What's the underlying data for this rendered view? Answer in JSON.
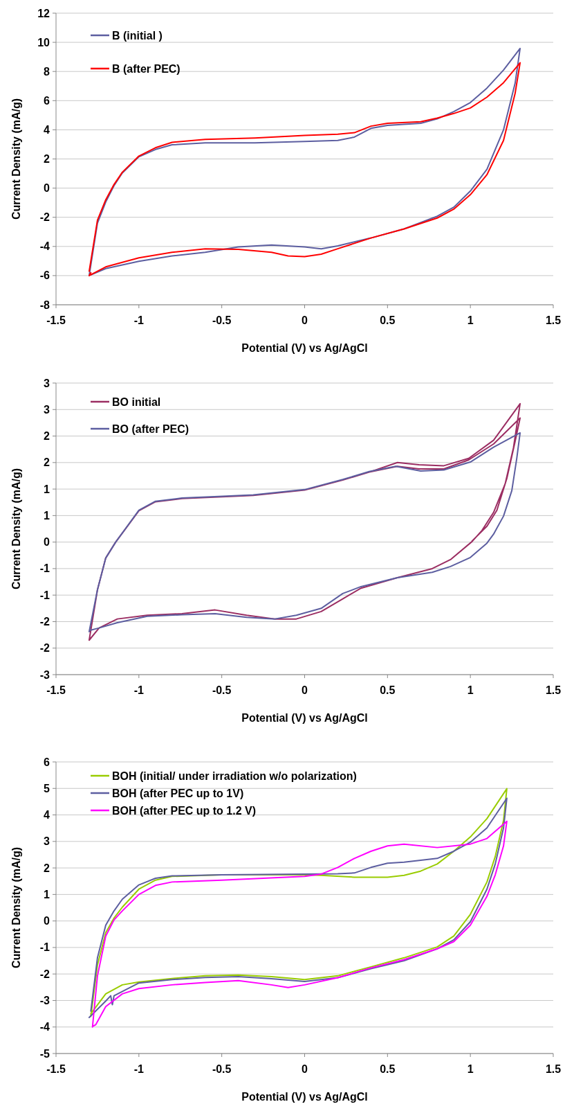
{
  "chart_data": [
    {
      "type": "line",
      "xlabel": "Potential (V) vs Ag/AgCl",
      "ylabel": "Current Density (mA/g)",
      "xlim": [
        -1.5,
        1.5
      ],
      "xticks": [
        -1.5,
        -1,
        -0.5,
        0,
        0.5,
        1,
        1.5
      ],
      "ylim": [
        -8,
        12
      ],
      "yticks": [
        -8,
        -6,
        -4,
        -2,
        0,
        2,
        4,
        6,
        8,
        10,
        12
      ],
      "grid": "y",
      "legend": "top left",
      "series": [
        {
          "name": "B (initial )",
          "color": "#5c5ea0",
          "x": [
            -1.3,
            -1.25,
            -1.2,
            -1.15,
            -1.1,
            -1.0,
            -0.9,
            -0.8,
            -0.6,
            -0.3,
            0,
            0.2,
            0.3,
            0.4,
            0.5,
            0.7,
            0.8,
            0.9,
            1.0,
            1.1,
            1.2,
            1.3,
            1.27,
            1.2,
            1.1,
            1.0,
            0.9,
            0.8,
            0.6,
            0.4,
            0.2,
            0.1,
            0,
            -0.2,
            -0.4,
            -0.6,
            -0.8,
            -1.0,
            -1.2,
            -1.29
          ],
          "values": [
            -6.0,
            -2.4,
            -0.95,
            0.17,
            1.04,
            2.15,
            2.65,
            2.97,
            3.1,
            3.1,
            3.2,
            3.27,
            3.5,
            4.1,
            4.3,
            4.45,
            4.75,
            5.25,
            5.87,
            6.86,
            8.1,
            9.58,
            7.2,
            4.0,
            1.29,
            -0.2,
            -1.31,
            -1.93,
            -2.8,
            -3.42,
            -3.96,
            -4.16,
            -4.03,
            -3.9,
            -4.03,
            -4.4,
            -4.65,
            -5.02,
            -5.52,
            -5.95
          ]
        },
        {
          "name": "B (after PEC)",
          "color": "#ff0000",
          "x": [
            -1.3,
            -1.25,
            -1.2,
            -1.15,
            -1.1,
            -1.0,
            -0.9,
            -0.8,
            -0.6,
            -0.3,
            0,
            0.2,
            0.3,
            0.4,
            0.5,
            0.7,
            0.8,
            0.9,
            1.0,
            1.1,
            1.2,
            1.3,
            1.27,
            1.2,
            1.1,
            1.0,
            0.9,
            0.8,
            0.6,
            0.4,
            0.2,
            0.1,
            0,
            -0.1,
            -0.2,
            -0.4,
            -0.6,
            -0.8,
            -1.0,
            -1.2,
            -1.3,
            -1.29
          ],
          "values": [
            -5.7,
            -2.2,
            -0.8,
            0.25,
            1.09,
            2.2,
            2.77,
            3.14,
            3.34,
            3.44,
            3.61,
            3.7,
            3.8,
            4.25,
            4.45,
            4.55,
            4.8,
            5.12,
            5.5,
            6.24,
            7.23,
            8.6,
            6.5,
            3.27,
            0.92,
            -0.45,
            -1.44,
            -2.05,
            -2.8,
            -3.42,
            -4.16,
            -4.53,
            -4.7,
            -4.65,
            -4.4,
            -4.2,
            -4.16,
            -4.4,
            -4.78,
            -5.4,
            -6.0,
            -5.8
          ]
        }
      ]
    },
    {
      "type": "line",
      "xlabel": "Potential (V) vs Ag/AgCl",
      "ylabel": "Current Density (mA/g)",
      "xlim": [
        -1.5,
        1.5
      ],
      "xticks": [
        -1.5,
        -1,
        -0.5,
        0,
        0.5,
        1,
        1.5
      ],
      "ylim": [
        -2.5,
        3
      ],
      "yticks": [
        {
          "value": -2.5,
          "label": "-3"
        },
        {
          "value": -2,
          "label": "-2"
        },
        {
          "value": -1.5,
          "label": "-2"
        },
        {
          "value": -1,
          "label": "-1"
        },
        {
          "value": -0.5,
          "label": "-1"
        },
        0,
        {
          "value": 0.5,
          "label": "1"
        },
        1,
        {
          "value": 1.5,
          "label": "2"
        },
        2,
        {
          "value": 2.5,
          "label": "3"
        },
        3
      ],
      "grid": "y",
      "legend": "top left",
      "series": [
        {
          "name": "BO initial",
          "color": "#9b2d62",
          "x": [
            -1.3,
            -1.25,
            -1.2,
            -1.14,
            -1.0,
            -0.9,
            -0.74,
            -0.52,
            -0.31,
            0,
            0.23,
            0.39,
            0.56,
            0.69,
            0.84,
            0.99,
            1.14,
            1.3,
            1.26,
            1.21,
            1.14,
            1.07,
            1.01,
            0.88,
            0.77,
            0.56,
            0.34,
            0.23,
            0.1,
            -0.05,
            -0.18,
            -0.35,
            -0.54,
            -0.74,
            -0.95,
            -1.13,
            -1.24,
            -1.3,
            -1.25,
            -1.2,
            -1.14,
            -1.0,
            -0.9,
            -0.74,
            -0.52,
            -0.31,
            0,
            0.23,
            0.39,
            0.56,
            0.69,
            0.84,
            0.99,
            1.14,
            1.3,
            1.27,
            1.22,
            1.16,
            1.1,
            1.01
          ],
          "values": [
            -1.85,
            -0.9,
            -0.3,
            0,
            0.59,
            0.76,
            0.82,
            0.85,
            0.88,
            0.98,
            1.17,
            1.32,
            1.5,
            1.46,
            1.44,
            1.58,
            1.92,
            2.61,
            1.78,
            1.1,
            0.56,
            0.22,
            0.01,
            -0.33,
            -0.5,
            -0.67,
            -0.87,
            -1.07,
            -1.31,
            -1.45,
            -1.45,
            -1.38,
            -1.28,
            -1.35,
            -1.38,
            -1.45,
            -1.62,
            -1.85,
            -0.9,
            -0.3,
            0,
            0.59,
            0.76,
            0.82,
            0.85,
            0.88,
            0.98,
            1.17,
            1.32,
            1.43,
            1.38,
            1.38,
            1.55,
            1.85,
            2.34,
            1.9,
            1.2,
            0.6,
            0.3,
            0.02
          ]
        },
        {
          "name": "BO (after PEC)",
          "color": "#5c5ea0",
          "x": [
            -1.3,
            -1.25,
            -1.2,
            -1.14,
            -1.0,
            -0.9,
            -0.74,
            -0.52,
            -0.31,
            0,
            0.23,
            0.39,
            0.55,
            0.7,
            0.84,
            1.0,
            1.14,
            1.3,
            1.28,
            1.25,
            1.2,
            1.14,
            1.1,
            1.0,
            0.88,
            0.77,
            0.56,
            0.34,
            0.23,
            0.1,
            -0.05,
            -0.18,
            -0.35,
            -0.54,
            -0.74,
            -0.95,
            -1.13,
            -1.24,
            -1.29
          ],
          "values": [
            -1.69,
            -0.9,
            -0.3,
            0,
            0.6,
            0.77,
            0.83,
            0.86,
            0.89,
            0.99,
            1.18,
            1.33,
            1.43,
            1.34,
            1.36,
            1.51,
            1.79,
            2.06,
            1.58,
            0.97,
            0.49,
            0.15,
            -0.02,
            -0.29,
            -0.46,
            -0.57,
            -0.67,
            -0.84,
            -0.97,
            -1.25,
            -1.38,
            -1.45,
            -1.42,
            -1.35,
            -1.37,
            -1.4,
            -1.52,
            -1.62,
            -1.66
          ]
        }
      ]
    },
    {
      "type": "line",
      "xlabel": "Potential (V) vs Ag/AgCl",
      "ylabel": "Current Density (mA/g)",
      "xlim": [
        -1.5,
        1.5
      ],
      "xticks": [
        -1.5,
        -1,
        -0.5,
        0,
        0.5,
        1,
        1.5
      ],
      "ylim": [
        -5,
        6
      ],
      "yticks": [
        -5,
        -4,
        -3,
        -2,
        -1,
        0,
        1,
        2,
        3,
        4,
        5,
        6
      ],
      "grid": "y",
      "legend": "top left",
      "series": [
        {
          "name": "BOH (initial/ under irradiation w/o polarization)",
          "color": "#99cc00",
          "x": [
            -1.29,
            -1.25,
            -1.2,
            -1.15,
            -1.1,
            -1.0,
            -0.9,
            -0.8,
            -0.5,
            0,
            0.1,
            0.3,
            0.5,
            0.6,
            0.7,
            0.8,
            0.9,
            1.0,
            1.1,
            1.22,
            1.2,
            1.15,
            1.1,
            1.0,
            0.9,
            0.8,
            0.6,
            0.4,
            0.2,
            0,
            -0.2,
            -0.4,
            -0.6,
            -0.8,
            -1.0,
            -1.1,
            -1.2,
            -1.29
          ],
          "values": [
            -3.6,
            -1.66,
            -0.44,
            0.11,
            0.52,
            1.2,
            1.54,
            1.68,
            1.74,
            1.74,
            1.72,
            1.65,
            1.65,
            1.72,
            1.88,
            2.15,
            2.63,
            3.17,
            3.86,
            4.99,
            3.79,
            2.43,
            1.47,
            0.25,
            -0.57,
            -0.98,
            -1.39,
            -1.73,
            -2.07,
            -2.21,
            -2.1,
            -2.04,
            -2.07,
            -2.17,
            -2.3,
            -2.41,
            -2.75,
            -3.5
          ]
        },
        {
          "name": "BOH (after PEC up to 1V)",
          "color": "#5c5ea0",
          "x": [
            -1.29,
            -1.25,
            -1.2,
            -1.15,
            -1.1,
            -1.0,
            -0.9,
            -0.8,
            -0.5,
            0,
            0.2,
            0.3,
            0.4,
            0.5,
            0.6,
            0.8,
            0.9,
            1.0,
            1.1,
            1.22,
            1.2,
            1.15,
            1.1,
            1.0,
            0.9,
            0.8,
            0.6,
            0.4,
            0.2,
            0,
            -0.2,
            -0.4,
            -0.6,
            -0.8,
            -1.0,
            -1.15,
            -1.16,
            -1.17,
            -1.2,
            -1.3
          ],
          "values": [
            -3.4,
            -1.39,
            -0.16,
            0.38,
            0.82,
            1.36,
            1.61,
            1.7,
            1.74,
            1.77,
            1.78,
            1.81,
            2.02,
            2.18,
            2.22,
            2.36,
            2.63,
            2.97,
            3.51,
            4.63,
            3.51,
            2.15,
            1.2,
            -0.03,
            -0.71,
            -1.05,
            -1.5,
            -1.8,
            -2.14,
            -2.28,
            -2.18,
            -2.1,
            -2.13,
            -2.21,
            -2.34,
            -2.82,
            -3.16,
            -2.82,
            -3.02,
            -3.64
          ]
        },
        {
          "name": "BOH (after PEC up to 1.2 V)",
          "color": "#ff00ff",
          "x": [
            -1.28,
            -1.25,
            -1.2,
            -1.15,
            -1.1,
            -1.0,
            -0.9,
            -0.8,
            -0.5,
            0,
            0.1,
            0.2,
            0.3,
            0.4,
            0.5,
            0.6,
            0.8,
            1.0,
            1.1,
            1.22,
            1.2,
            1.15,
            1.1,
            1.0,
            0.9,
            0.8,
            0.6,
            0.4,
            0.2,
            0,
            -0.1,
            -0.2,
            -0.4,
            -0.6,
            -0.8,
            -1.0,
            -1.1,
            -1.2,
            -1.26,
            -1.28
          ],
          "values": [
            -4.0,
            -2.07,
            -0.57,
            0.04,
            0.38,
            1.0,
            1.34,
            1.47,
            1.54,
            1.68,
            1.77,
            2.02,
            2.36,
            2.63,
            2.83,
            2.9,
            2.77,
            2.9,
            3.11,
            3.76,
            2.83,
            1.74,
            0.93,
            -0.16,
            -0.78,
            -1.05,
            -1.46,
            -1.77,
            -2.14,
            -2.41,
            -2.51,
            -2.41,
            -2.25,
            -2.32,
            -2.41,
            -2.55,
            -2.75,
            -3.23,
            -3.91,
            -3.98
          ]
        }
      ]
    }
  ]
}
